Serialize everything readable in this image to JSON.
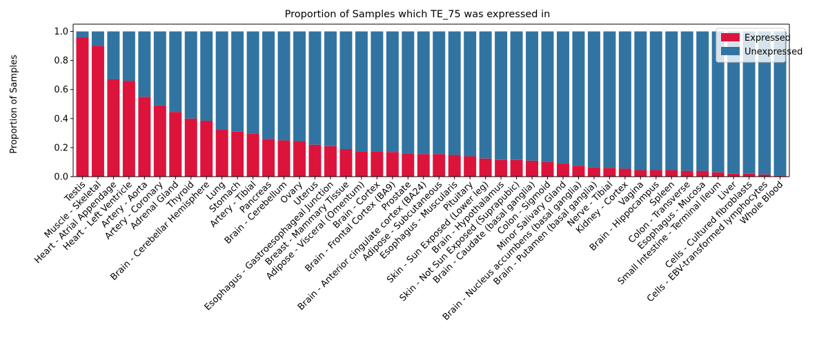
{
  "chart_data": {
    "type": "bar",
    "stacked": true,
    "title": "Proportion of Samples which TE_75 was expressed in",
    "xlabel": "",
    "ylabel": "Proportion of Samples",
    "ylim": [
      0,
      1.05
    ],
    "yticks": [
      0.0,
      0.2,
      0.4,
      0.6,
      0.8,
      1.0
    ],
    "ytick_labels": [
      "0.0",
      "0.2",
      "0.4",
      "0.6",
      "0.8",
      "1.0"
    ],
    "grid": false,
    "legend_position": "top-right",
    "categories": [
      "Testis",
      "Muscle - Skeletal",
      "Heart - Atrial Appendage",
      "Heart - Left Ventricle",
      "Artery - Aorta",
      "Artery - Coronary",
      "Adrenal Gland",
      "Thyroid",
      "Brain - Cerebellar Hemisphere",
      "Lung",
      "Stomach",
      "Artery - Tibial",
      "Pancreas",
      "Brain - Cerebellum",
      "Ovary",
      "Uterus",
      "Esophagus - Gastroesophageal Junction",
      "Breast - Mammary Tissue",
      "Adipose - Visceral (Omentum)",
      "Brain - Cortex",
      "Brain - Frontal Cortex (BA9)",
      "Prostate",
      "Brain - Anterior cingulate cortex (BA24)",
      "Adipose - Subcutaneous",
      "Esophagus - Muscularis",
      "Pituitary",
      "Skin - Sun Exposed (Lower leg)",
      "Brain - Hypothalamus",
      "Skin - Not Sun Exposed (Suprapubic)",
      "Brain - Caudate (basal ganglia)",
      "Colon - Sigmoid",
      "Minor Salivary Gland",
      "Brain - Nucleus accumbens (basal ganglia)",
      "Brain - Putamen (basal ganglia)",
      "Nerve - Tibial",
      "Kidney - Cortex",
      "Vagina",
      "Brain - Hippocampus",
      "Spleen",
      "Colon - Transverse",
      "Esophagus - Mucosa",
      "Small Intestine - Terminal Ileum",
      "Liver",
      "Cells - Cultured fibroblasts",
      "Cells - EBV-transformed lymphocytes",
      "Whole Blood"
    ],
    "series": [
      {
        "name": "Expressed",
        "color": "#dc143c",
        "values": [
          0.96,
          0.9,
          0.67,
          0.66,
          0.55,
          0.49,
          0.445,
          0.4,
          0.385,
          0.325,
          0.31,
          0.295,
          0.26,
          0.25,
          0.245,
          0.22,
          0.21,
          0.19,
          0.175,
          0.175,
          0.17,
          0.16,
          0.155,
          0.155,
          0.15,
          0.14,
          0.125,
          0.115,
          0.115,
          0.11,
          0.1,
          0.09,
          0.075,
          0.065,
          0.06,
          0.055,
          0.045,
          0.045,
          0.045,
          0.04,
          0.04,
          0.03,
          0.02,
          0.02,
          0.015,
          0.005
        ]
      },
      {
        "name": "Unexpressed",
        "color": "#3274a1",
        "values": [
          0.04,
          0.1,
          0.33,
          0.34,
          0.45,
          0.51,
          0.555,
          0.6,
          0.615,
          0.675,
          0.69,
          0.705,
          0.74,
          0.75,
          0.755,
          0.78,
          0.79,
          0.81,
          0.825,
          0.825,
          0.83,
          0.84,
          0.845,
          0.845,
          0.85,
          0.86,
          0.875,
          0.885,
          0.885,
          0.89,
          0.9,
          0.91,
          0.925,
          0.935,
          0.94,
          0.945,
          0.955,
          0.955,
          0.955,
          0.96,
          0.96,
          0.97,
          0.98,
          0.98,
          0.985,
          0.995
        ]
      }
    ]
  }
}
